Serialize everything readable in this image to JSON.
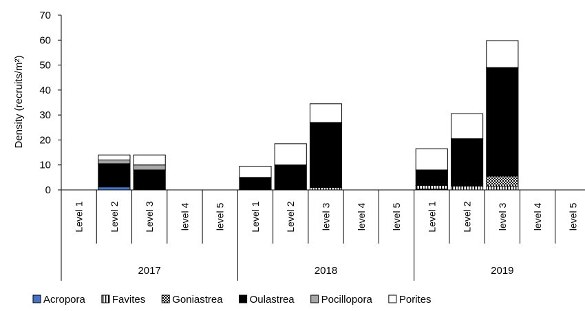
{
  "chart_data": {
    "type": "bar",
    "stacked": true,
    "ylabel": "Density (recruits/m²)",
    "ylim": [
      0,
      70
    ],
    "yticks": [
      0,
      10,
      20,
      30,
      40,
      50,
      60,
      70
    ],
    "grid": false,
    "legend_position": "bottom",
    "groups": [
      {
        "label": "2017",
        "categories": [
          "Level 1",
          "Level 2",
          "Level 3",
          "level 4",
          "level 5"
        ]
      },
      {
        "label": "2018",
        "categories": [
          "Level 1",
          "Level 2",
          "level 3",
          "level 4",
          "level 5"
        ]
      },
      {
        "label": "2019",
        "categories": [
          "Level 1",
          "Level 2",
          "level 3",
          "level 4",
          "level 5"
        ]
      }
    ],
    "series": [
      {
        "name": "Acropora",
        "color": "#4472c4",
        "pattern": "solid",
        "values": [
          0,
          1.2,
          0,
          0,
          0,
          0,
          0,
          0,
          0,
          0,
          0.3,
          0,
          0,
          0,
          0
        ]
      },
      {
        "name": "Favites",
        "color": "#ffffff",
        "pattern": "vertical-stripes",
        "values": [
          0,
          0,
          0,
          0,
          0,
          0,
          0,
          1,
          0,
          0,
          1.5,
          1.5,
          1.5,
          0,
          0
        ]
      },
      {
        "name": "Goniastrea",
        "color": "#ffffff",
        "pattern": "checker",
        "values": [
          0,
          0,
          0,
          0,
          0,
          0,
          0,
          0,
          0,
          0,
          0,
          0,
          4,
          0,
          0
        ]
      },
      {
        "name": "Oulastrea",
        "color": "#000000",
        "pattern": "solid",
        "values": [
          0,
          9.3,
          8,
          0,
          0,
          5,
          10,
          26,
          0,
          0,
          6.2,
          19,
          43.5,
          0,
          0
        ]
      },
      {
        "name": "Pocillopora",
        "color": "#a6a6a6",
        "pattern": "solid",
        "values": [
          0,
          1.5,
          2,
          0,
          0,
          0,
          0,
          0,
          0,
          0,
          0,
          0,
          0,
          0,
          0
        ]
      },
      {
        "name": "Porites",
        "color": "#ffffff",
        "pattern": "solid",
        "values": [
          0,
          2,
          4,
          0,
          0,
          4.5,
          8.5,
          7.5,
          0,
          0,
          8.5,
          10,
          10.8,
          0,
          0
        ]
      }
    ]
  }
}
